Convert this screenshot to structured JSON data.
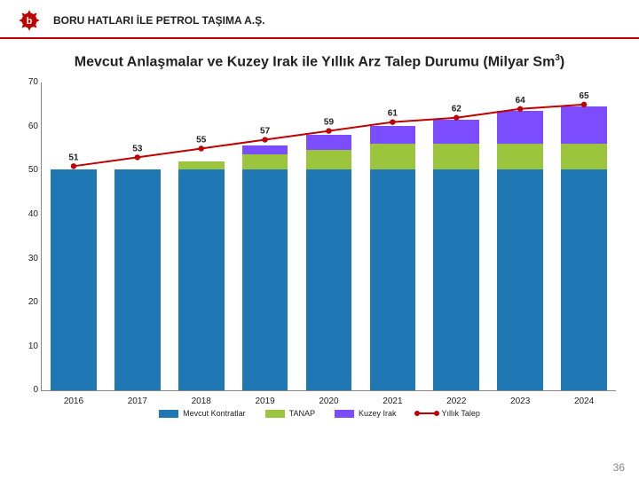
{
  "header": {
    "company": "BORU HATLARI İLE PETROL TAŞIMA A.Ş.",
    "logo_color": "#c00000",
    "logo_text": "b"
  },
  "title_pre": "Mevcut Anlaşmalar ve Kuzey Irak ile Yıllık Arz Talep Durumu (Milyar Sm",
  "title_sup": "3",
  "title_post": ")",
  "page_number": "36",
  "chart": {
    "type": "stacked-bar-with-line",
    "ylim": [
      0,
      70
    ],
    "ytick_step": 10,
    "categories": [
      "2016",
      "2017",
      "2018",
      "2019",
      "2020",
      "2021",
      "2022",
      "2023",
      "2024"
    ],
    "series": [
      {
        "name": "Mevcut Kontratlar",
        "color": "#1f77b4",
        "values": [
          50.2,
          50.2,
          50.2,
          50.2,
          50.2,
          50.2,
          50.2,
          50.2,
          50.2
        ]
      },
      {
        "name": "TANAP",
        "color": "#9bc53d",
        "values": [
          0,
          0,
          2,
          3.5,
          4.5,
          6,
          6,
          6,
          6
        ]
      },
      {
        "name": "Kuzey Irak",
        "color": "#7c4dff",
        "values": [
          0,
          0,
          0,
          2,
          3.5,
          4,
          5.5,
          7.5,
          8.5
        ]
      }
    ],
    "line": {
      "name": "Yıllık Talep",
      "color": "#c00000",
      "values": [
        51,
        53,
        55,
        57,
        59,
        61,
        62,
        64,
        65
      ],
      "labels": [
        "51",
        "53",
        "55",
        "57",
        "59",
        "61",
        "62",
        "64",
        "65"
      ]
    },
    "bar_width_pct": 72,
    "background_color": "#ffffff",
    "axis_color": "#888888",
    "label_fontsize": 10
  },
  "legend": [
    {
      "label": "Mevcut Kontratlar",
      "type": "box",
      "color": "#1f77b4"
    },
    {
      "label": "TANAP",
      "type": "box",
      "color": "#9bc53d"
    },
    {
      "label": "Kuzey Irak",
      "type": "box",
      "color": "#7c4dff"
    },
    {
      "label": "Yıllık Talep",
      "type": "line",
      "color": "#c00000"
    }
  ]
}
